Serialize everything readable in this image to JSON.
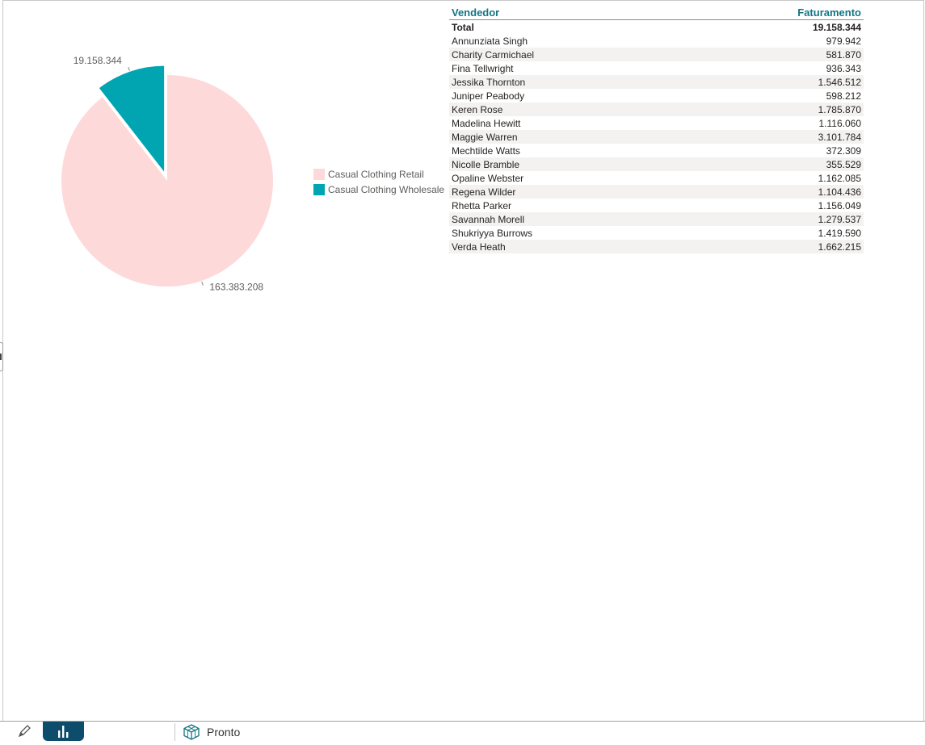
{
  "colors": {
    "retail": "#fdd9da",
    "wholesale": "#01a5b2",
    "header_text": "#117685",
    "status_active": "#0e4c6b"
  },
  "chart_data": {
    "type": "pie",
    "exploded_slice": "Casual Clothing Wholesale",
    "legend_position": "right",
    "slices": [
      {
        "name": "Casual Clothing Retail",
        "value": 163383208,
        "label": "163.383.208",
        "color": "#fdd9da"
      },
      {
        "name": "Casual Clothing Wholesale",
        "value": 19158344,
        "label": "19.158.344",
        "color": "#01a5b2"
      }
    ],
    "table": {
      "headers": [
        "Vendedor",
        "Faturamento"
      ],
      "total": {
        "label": "Total",
        "value": "19.158.344"
      },
      "rows": [
        {
          "name": "Annunziata Singh",
          "value": "979.942"
        },
        {
          "name": "Charity Carmichael",
          "value": "581.870"
        },
        {
          "name": "Fina Tellwright",
          "value": "936.343"
        },
        {
          "name": "Jessika Thornton",
          "value": "1.546.512"
        },
        {
          "name": "Juniper Peabody",
          "value": "598.212"
        },
        {
          "name": "Keren Rose",
          "value": "1.785.870"
        },
        {
          "name": "Madelina Hewitt",
          "value": "1.116.060"
        },
        {
          "name": "Maggie Warren",
          "value": "3.101.784"
        },
        {
          "name": "Mechtilde Watts",
          "value": "372.309"
        },
        {
          "name": "Nicolle Bramble",
          "value": "355.529"
        },
        {
          "name": "Opaline Webster",
          "value": "1.162.085"
        },
        {
          "name": "Regena Wilder",
          "value": "1.104.436"
        },
        {
          "name": "Rhetta Parker",
          "value": "1.156.049"
        },
        {
          "name": "Savannah Morell",
          "value": "1.279.537"
        },
        {
          "name": "Shukriyya Burrows",
          "value": "1.419.590"
        },
        {
          "name": "Verda Heath",
          "value": "1.662.215"
        }
      ]
    }
  },
  "statusbar": {
    "edit_icon": "pencil-icon",
    "report_icon": "bar-chart-icon",
    "status_icon": "cube-icon",
    "status_text": "Pronto"
  }
}
